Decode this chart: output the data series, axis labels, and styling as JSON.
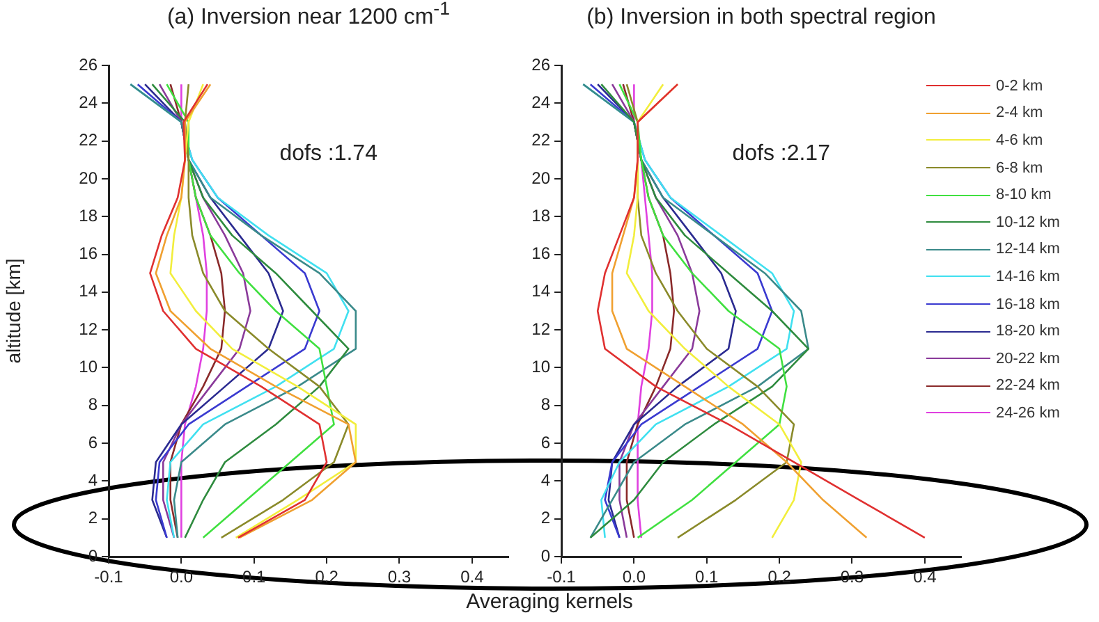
{
  "chart_data": [
    {
      "type": "line",
      "title": "(a) Inversion near 1200 cm$^{-1}$",
      "xlabel": "Averaging kernels",
      "ylabel": "altitude [km]",
      "annotations": [
        "dofs :1.74"
      ],
      "marker": "none",
      "xlim": [
        -0.1,
        0.45
      ],
      "xticks": [
        -0.1,
        {
          "value": 0,
          "label": "0.0"
        },
        0.1,
        0.2,
        0.3,
        0.4
      ],
      "ylim": [
        0,
        26
      ],
      "yticks": [
        0,
        2,
        4,
        6,
        8,
        10,
        12,
        14,
        16,
        18,
        20,
        22,
        24,
        26
      ],
      "series": [
        {
          "color": "#e03030",
          "x": [
            0.078,
            0.17,
            0.2,
            0.19,
            0.11,
            0.02,
            -0.025,
            -0.043,
            -0.027,
            -0.005,
            0.005,
            0.003,
            0.036
          ],
          "values": [
            1,
            3,
            5,
            7,
            9,
            11,
            13,
            15,
            17,
            19,
            21,
            23,
            25
          ]
        },
        {
          "color": "#f0a030",
          "x": [
            0.08,
            0.18,
            0.24,
            0.23,
            0.13,
            0.04,
            -0.015,
            -0.035,
            -0.02,
            0,
            0.005,
            0.005,
            0.04
          ],
          "values": [
            1,
            3,
            5,
            7,
            9,
            11,
            13,
            15,
            17,
            19,
            21,
            23,
            25
          ]
        },
        {
          "color": "#f2ee3c",
          "x": [
            0.075,
            0.16,
            0.24,
            0.24,
            0.16,
            0.07,
            0.02,
            -0.015,
            -0.01,
            0,
            0.005,
            0.01,
            0.03
          ],
          "values": [
            1,
            3,
            5,
            7,
            9,
            11,
            13,
            15,
            17,
            19,
            21,
            23,
            25
          ]
        },
        {
          "color": "#8a8a2a",
          "x": [
            0.055,
            0.14,
            0.21,
            0.23,
            0.19,
            0.12,
            0.06,
            0.03,
            0.015,
            0.01,
            0.01,
            0.005,
            0.01
          ],
          "values": [
            1,
            3,
            5,
            7,
            9,
            11,
            13,
            15,
            17,
            19,
            21,
            23,
            25
          ]
        },
        {
          "color": "#40e040",
          "x": [
            0.03,
            0.09,
            0.15,
            0.21,
            0.2,
            0.19,
            0.13,
            0.08,
            0.04,
            0.02,
            0.01,
            0.01,
            -0.02
          ],
          "values": [
            1,
            3,
            5,
            7,
            9,
            11,
            13,
            15,
            17,
            19,
            21,
            23,
            25
          ]
        },
        {
          "color": "#2e8b3e",
          "x": [
            0.005,
            0.03,
            0.06,
            0.13,
            0.19,
            0.23,
            0.18,
            0.13,
            0.07,
            0.03,
            0.01,
            0.005,
            -0.04
          ],
          "values": [
            1,
            3,
            5,
            7,
            9,
            11,
            13,
            15,
            17,
            19,
            21,
            23,
            25
          ]
        },
        {
          "color": "#3a8a8a",
          "x": [
            -0.005,
            -0.01,
            0,
            0.06,
            0.16,
            0.24,
            0.24,
            0.19,
            0.11,
            0.04,
            0.01,
            0,
            -0.07
          ],
          "values": [
            1,
            3,
            5,
            7,
            9,
            11,
            13,
            15,
            17,
            19,
            21,
            23,
            25
          ]
        },
        {
          "color": "#40e0f0",
          "x": [
            -0.01,
            -0.02,
            -0.015,
            0.03,
            0.13,
            0.21,
            0.23,
            0.2,
            0.12,
            0.05,
            0.015,
            0,
            -0.07
          ],
          "values": [
            1,
            3,
            5,
            7,
            9,
            11,
            13,
            15,
            17,
            19,
            21,
            23,
            25
          ]
        },
        {
          "color": "#3a3ad0",
          "x": [
            -0.02,
            -0.035,
            -0.03,
            0.01,
            0.09,
            0.17,
            0.19,
            0.17,
            0.11,
            0.05,
            0.015,
            0,
            -0.06
          ],
          "values": [
            1,
            3,
            5,
            7,
            9,
            11,
            13,
            15,
            17,
            19,
            21,
            23,
            25
          ]
        },
        {
          "color": "#2a2a90",
          "x": [
            -0.02,
            -0.04,
            -0.035,
            0,
            0.06,
            0.12,
            0.14,
            0.12,
            0.08,
            0.04,
            0.01,
            0,
            -0.05
          ],
          "values": [
            1,
            3,
            5,
            7,
            9,
            11,
            13,
            15,
            17,
            19,
            21,
            23,
            25
          ]
        },
        {
          "color": "#8a3a9a",
          "x": [
            -0.01,
            -0.025,
            -0.025,
            0,
            0.04,
            0.08,
            0.095,
            0.085,
            0.06,
            0.03,
            0.01,
            0,
            -0.03
          ],
          "values": [
            1,
            3,
            5,
            7,
            9,
            11,
            13,
            15,
            17,
            19,
            21,
            23,
            25
          ]
        },
        {
          "color": "#8a2a2a",
          "x": [
            -0.005,
            -0.015,
            -0.015,
            0,
            0.03,
            0.055,
            0.06,
            0.055,
            0.04,
            0.02,
            0.01,
            0,
            -0.015
          ],
          "values": [
            1,
            3,
            5,
            7,
            9,
            11,
            13,
            15,
            17,
            19,
            21,
            23,
            25
          ]
        },
        {
          "color": "#e040e0",
          "x": [
            0,
            0,
            0.005,
            0.02,
            0.03,
            0.035,
            0.035,
            0.03,
            0.02,
            0.01,
            0,
            0
          ],
          "values": [
            1,
            5,
            7,
            9,
            11,
            13,
            15,
            17,
            19,
            21,
            23,
            25
          ]
        }
      ]
    },
    {
      "type": "line",
      "title": "(b) Inversion in both spectral region",
      "annotations": [
        "dofs :2.17"
      ],
      "marker": "none",
      "legend": "right",
      "xlim": [
        -0.1,
        0.45
      ],
      "xticks": [
        -0.1,
        {
          "value": 0,
          "label": "0.0"
        },
        0.1,
        0.2,
        0.3,
        0.4
      ],
      "ylim": [
        0,
        26
      ],
      "yticks": [
        0,
        2,
        4,
        6,
        8,
        10,
        12,
        14,
        16,
        18,
        20,
        22,
        24,
        26
      ],
      "series": [
        {
          "name": "0-2 km",
          "color": "#e03030",
          "x": [
            0.4,
            0.31,
            0.22,
            0.13,
            0.03,
            -0.04,
            -0.05,
            -0.04,
            -0.02,
            0,
            0.005,
            0.005,
            0.06
          ],
          "values": [
            1,
            3,
            5,
            7,
            9,
            11,
            13,
            15,
            17,
            19,
            21,
            23,
            25
          ]
        },
        {
          "name": "2-4 km",
          "color": "#f0a030",
          "x": [
            0.32,
            0.26,
            0.21,
            0.15,
            0.07,
            -0.01,
            -0.03,
            -0.03,
            -0.015,
            0,
            0.005,
            0.005,
            0.06
          ],
          "values": [
            1,
            3,
            5,
            7,
            9,
            11,
            13,
            15,
            17,
            19,
            21,
            23,
            25
          ]
        },
        {
          "name": "4-6 km",
          "color": "#f2ee3c",
          "x": [
            0.19,
            0.22,
            0.23,
            0.2,
            0.13,
            0.07,
            0.02,
            -0.01,
            0,
            0.005,
            0.005,
            0.04
          ],
          "values": [
            1,
            3,
            5,
            7,
            9,
            11,
            13,
            15,
            17,
            19,
            23,
            25
          ]
        },
        {
          "name": "6-8 km",
          "color": "#8a8a2a",
          "x": [
            0.06,
            0.14,
            0.21,
            0.22,
            0.17,
            0.1,
            0.06,
            0.03,
            0.01,
            0.005,
            0.005,
            -0.01
          ],
          "values": [
            1,
            3,
            5,
            7,
            9,
            11,
            13,
            15,
            17,
            19,
            23,
            25
          ]
        },
        {
          "name": "8-10 km",
          "color": "#40e040",
          "x": [
            0.005,
            0.08,
            0.14,
            0.2,
            0.21,
            0.2,
            0.13,
            0.08,
            0.04,
            0.02,
            0.01,
            0.005,
            -0.02
          ],
          "values": [
            1,
            3,
            5,
            7,
            9,
            11,
            13,
            15,
            17,
            19,
            21,
            23,
            25
          ]
        },
        {
          "name": "10-12 km",
          "color": "#2e8b3e",
          "x": [
            -0.06,
            0,
            0.04,
            0.11,
            0.19,
            0.24,
            0.19,
            0.13,
            0.07,
            0.03,
            0.01,
            0,
            -0.045
          ],
          "values": [
            1,
            3,
            5,
            7,
            9,
            11,
            13,
            15,
            17,
            19,
            21,
            23,
            25
          ]
        },
        {
          "name": "12-14 km",
          "color": "#3a8a8a",
          "x": [
            -0.06,
            -0.03,
            0,
            0.07,
            0.17,
            0.24,
            0.23,
            0.18,
            0.11,
            0.04,
            0.01,
            0,
            -0.07
          ],
          "values": [
            1,
            3,
            5,
            7,
            9,
            11,
            13,
            15,
            17,
            19,
            21,
            23,
            25
          ]
        },
        {
          "name": "14-16 km",
          "color": "#40e0f0",
          "x": [
            -0.04,
            -0.045,
            -0.02,
            0.03,
            0.13,
            0.21,
            0.22,
            0.19,
            0.12,
            0.05,
            0.015,
            0,
            -0.07
          ],
          "values": [
            1,
            3,
            5,
            7,
            9,
            11,
            13,
            15,
            17,
            19,
            21,
            23,
            25
          ]
        },
        {
          "name": "16-18 km",
          "color": "#3a3ad0",
          "x": [
            -0.02,
            -0.04,
            -0.03,
            0.01,
            0.09,
            0.17,
            0.19,
            0.17,
            0.11,
            0.05,
            0.015,
            0,
            -0.06
          ],
          "values": [
            1,
            3,
            5,
            7,
            9,
            11,
            13,
            15,
            17,
            19,
            21,
            23,
            25
          ]
        },
        {
          "name": "18-20 km",
          "color": "#2a2a90",
          "x": [
            -0.02,
            -0.035,
            -0.03,
            0,
            0.06,
            0.13,
            0.14,
            0.12,
            0.08,
            0.04,
            0.01,
            0,
            -0.05
          ],
          "values": [
            1,
            3,
            5,
            7,
            9,
            11,
            13,
            15,
            17,
            19,
            21,
            23,
            25
          ]
        },
        {
          "name": "20-22 km",
          "color": "#8a3a9a",
          "x": [
            -0.01,
            -0.02,
            -0.02,
            0,
            0.04,
            0.08,
            0.09,
            0.08,
            0.06,
            0.03,
            0.01,
            0,
            -0.03
          ],
          "values": [
            1,
            3,
            5,
            7,
            9,
            11,
            13,
            15,
            17,
            19,
            21,
            23,
            25
          ]
        },
        {
          "name": "22-24 km",
          "color": "#8a2a2a",
          "x": [
            0,
            -0.01,
            -0.01,
            0.005,
            0.03,
            0.05,
            0.055,
            0.05,
            0.04,
            0.02,
            0.01,
            0,
            -0.015
          ],
          "values": [
            1,
            3,
            5,
            7,
            9,
            11,
            13,
            15,
            17,
            19,
            21,
            23,
            25
          ]
        },
        {
          "name": "24-26 km",
          "color": "#e040e0",
          "x": [
            0.01,
            0.005,
            0.005,
            0.01,
            0.02,
            0.025,
            0.025,
            0.02,
            0.015,
            0.01,
            0,
            0
          ],
          "values": [
            1,
            3,
            7,
            9,
            11,
            13,
            15,
            17,
            19,
            21,
            23,
            25
          ]
        }
      ]
    }
  ]
}
